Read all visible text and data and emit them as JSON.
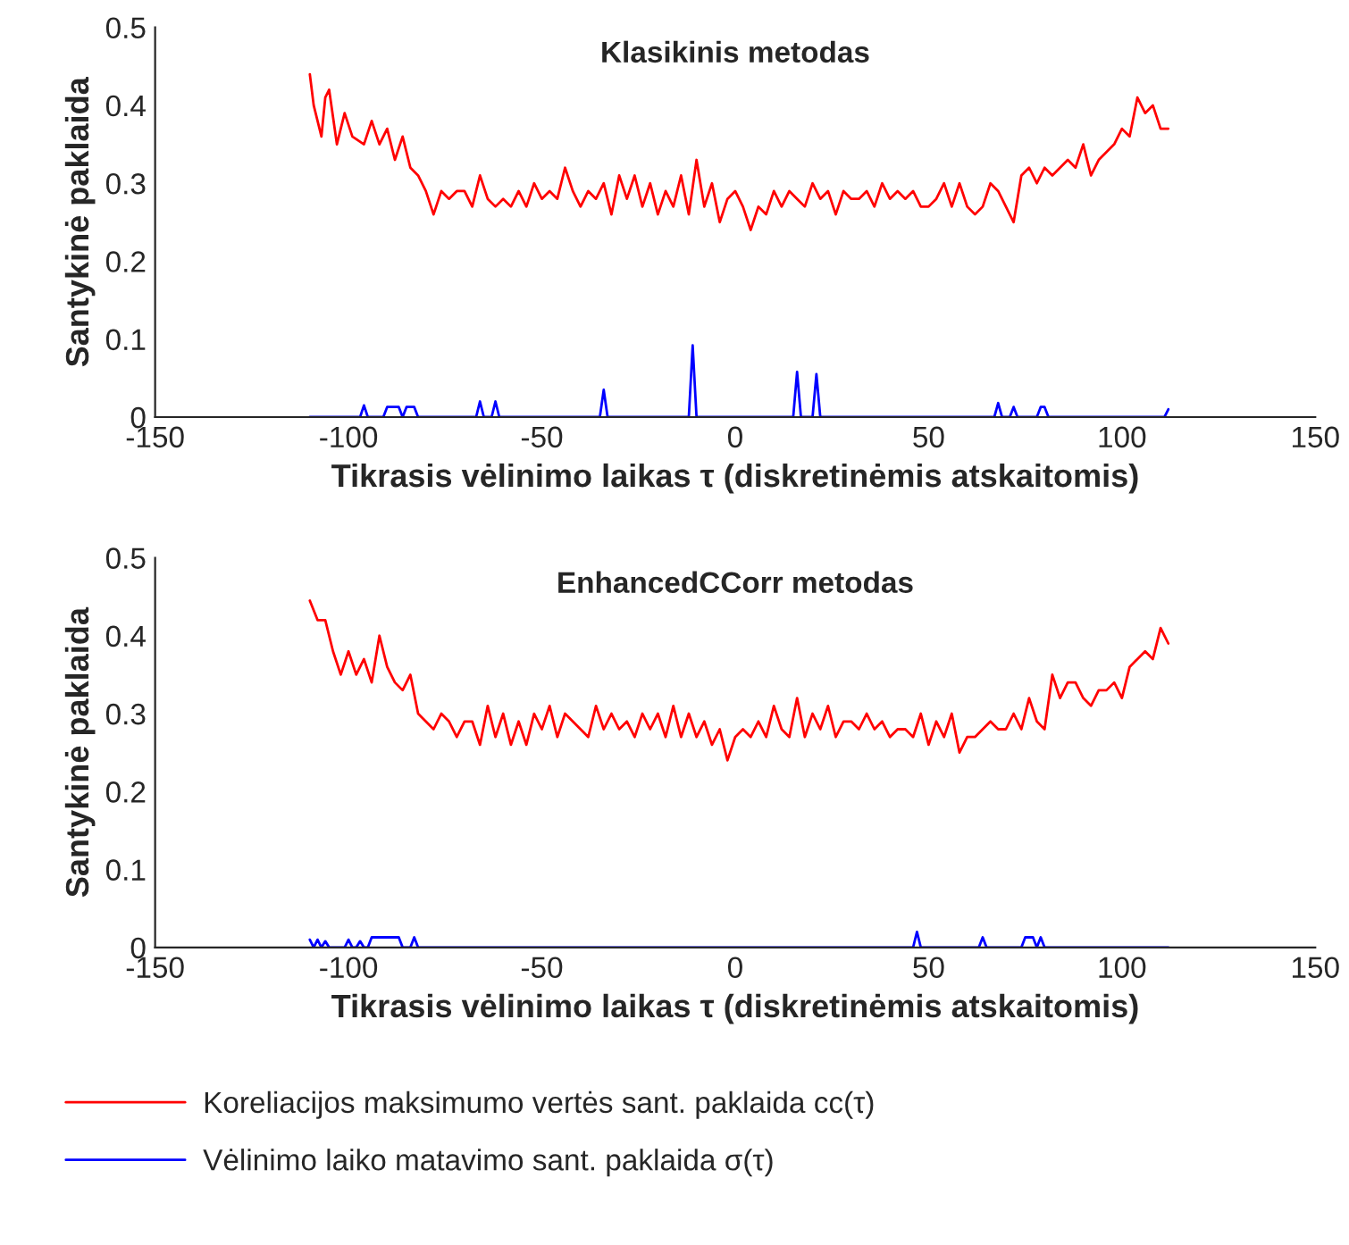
{
  "chart_data": [
    {
      "type": "line",
      "title": "Klasikinis metodas",
      "xlabel": "Tikrasis vėlinimo laikas τ (diskretinėmis atskaitomis)",
      "ylabel": "Santykinė paklaida",
      "xlim": [
        -150,
        150
      ],
      "xticks": [
        -150,
        -100,
        -50,
        0,
        50,
        100,
        150
      ],
      "ylim": [
        0,
        0.5
      ],
      "yticks": [
        0,
        0.1,
        0.2,
        0.3,
        0.4,
        0.5
      ],
      "grid": false,
      "series": [
        {
          "color": "#ff0000",
          "x": [
            -110,
            -109,
            -107,
            -106,
            -105,
            -103,
            -101,
            -99,
            -96,
            -94,
            -92,
            -90,
            -88,
            -86,
            -84,
            -82,
            -80,
            -78,
            -76,
            -74,
            -72,
            -70,
            -68,
            -66,
            -64,
            -62,
            -60,
            -58,
            -56,
            -54,
            -52,
            -50,
            -48,
            -46,
            -44,
            -42,
            -40,
            -38,
            -36,
            -34,
            -32,
            -30,
            -28,
            -26,
            -24,
            -22,
            -20,
            -18,
            -16,
            -14,
            -12,
            -10,
            -8,
            -6,
            -4,
            -2,
            0,
            2,
            4,
            6,
            8,
            10,
            12,
            14,
            16,
            18,
            20,
            22,
            24,
            26,
            28,
            30,
            32,
            34,
            36,
            38,
            40,
            42,
            44,
            46,
            48,
            50,
            52,
            54,
            56,
            58,
            60,
            62,
            64,
            66,
            68,
            70,
            72,
            74,
            76,
            78,
            80,
            82,
            84,
            86,
            88,
            90,
            92,
            94,
            96,
            98,
            100,
            102,
            104,
            106,
            108,
            110,
            112
          ],
          "values": [
            0.44,
            0.4,
            0.36,
            0.41,
            0.42,
            0.35,
            0.39,
            0.36,
            0.35,
            0.38,
            0.35,
            0.37,
            0.33,
            0.36,
            0.32,
            0.31,
            0.29,
            0.26,
            0.29,
            0.28,
            0.29,
            0.29,
            0.27,
            0.31,
            0.28,
            0.27,
            0.28,
            0.27,
            0.29,
            0.27,
            0.3,
            0.28,
            0.29,
            0.28,
            0.32,
            0.29,
            0.27,
            0.29,
            0.28,
            0.3,
            0.26,
            0.31,
            0.28,
            0.31,
            0.27,
            0.3,
            0.26,
            0.29,
            0.27,
            0.31,
            0.26,
            0.33,
            0.27,
            0.3,
            0.25,
            0.28,
            0.29,
            0.27,
            0.24,
            0.27,
            0.26,
            0.29,
            0.27,
            0.29,
            0.28,
            0.27,
            0.3,
            0.28,
            0.29,
            0.26,
            0.29,
            0.28,
            0.28,
            0.29,
            0.27,
            0.3,
            0.28,
            0.29,
            0.28,
            0.29,
            0.27,
            0.27,
            0.28,
            0.3,
            0.27,
            0.3,
            0.27,
            0.26,
            0.27,
            0.3,
            0.29,
            0.27,
            0.25,
            0.31,
            0.32,
            0.3,
            0.32,
            0.31,
            0.32,
            0.33,
            0.32,
            0.35,
            0.31,
            0.33,
            0.34,
            0.35,
            0.37,
            0.36,
            0.41,
            0.39,
            0.4,
            0.37,
            0.37
          ]
        },
        {
          "color": "#0000ff",
          "x": [
            -110,
            -97,
            -96,
            -95,
            -91,
            -90,
            -87,
            -86,
            -85,
            -83,
            -82,
            -67,
            -66,
            -65,
            -63,
            -62,
            -61,
            -35,
            -34,
            -33,
            -12,
            -11,
            -10,
            15,
            16,
            17,
            20,
            21,
            22,
            67,
            68,
            69,
            71,
            72,
            73,
            78,
            79,
            80,
            81,
            111,
            112
          ],
          "values": [
            0,
            0,
            0.015,
            0,
            0,
            0.013,
            0.013,
            0,
            0.013,
            0.013,
            0,
            0,
            0.02,
            0,
            0,
            0.02,
            0,
            0,
            0.035,
            0,
            0,
            0.092,
            0,
            0,
            0.058,
            0,
            0,
            0.055,
            0,
            0,
            0.018,
            0,
            0,
            0.013,
            0,
            0,
            0.013,
            0.013,
            0,
            0,
            0.01
          ]
        }
      ]
    },
    {
      "type": "line",
      "title": "EnhancedCCorr metodas",
      "xlabel": "Tikrasis vėlinimo laikas τ (diskretinėmis atskaitomis)",
      "ylabel": "Santykinė paklaida",
      "xlim": [
        -150,
        150
      ],
      "xticks": [
        -150,
        -100,
        -50,
        0,
        50,
        100,
        150
      ],
      "ylim": [
        0,
        0.5
      ],
      "yticks": [
        0,
        0.1,
        0.2,
        0.3,
        0.4,
        0.5
      ],
      "grid": false,
      "legend": "bottom",
      "series": [
        {
          "name": "Koreliacijos maksimumo vertės sant. paklaida cc(τ)",
          "color": "#ff0000",
          "x": [
            -110,
            -108,
            -106,
            -104,
            -102,
            -100,
            -98,
            -96,
            -94,
            -92,
            -90,
            -88,
            -86,
            -84,
            -82,
            -80,
            -78,
            -76,
            -74,
            -72,
            -70,
            -68,
            -66,
            -64,
            -62,
            -60,
            -58,
            -56,
            -54,
            -52,
            -50,
            -48,
            -46,
            -44,
            -42,
            -40,
            -38,
            -36,
            -34,
            -32,
            -30,
            -28,
            -26,
            -24,
            -22,
            -20,
            -18,
            -16,
            -14,
            -12,
            -10,
            -8,
            -6,
            -4,
            -2,
            0,
            2,
            4,
            6,
            8,
            10,
            12,
            14,
            16,
            18,
            20,
            22,
            24,
            26,
            28,
            30,
            32,
            34,
            36,
            38,
            40,
            42,
            44,
            46,
            48,
            50,
            52,
            54,
            56,
            58,
            60,
            62,
            64,
            66,
            68,
            70,
            72,
            74,
            76,
            78,
            80,
            82,
            84,
            86,
            88,
            90,
            92,
            94,
            96,
            98,
            100,
            102,
            104,
            106,
            108,
            110,
            112
          ],
          "values": [
            0.445,
            0.42,
            0.42,
            0.38,
            0.35,
            0.38,
            0.35,
            0.37,
            0.34,
            0.4,
            0.36,
            0.34,
            0.33,
            0.35,
            0.3,
            0.29,
            0.28,
            0.3,
            0.29,
            0.27,
            0.29,
            0.29,
            0.26,
            0.31,
            0.27,
            0.3,
            0.26,
            0.29,
            0.26,
            0.3,
            0.28,
            0.31,
            0.27,
            0.3,
            0.29,
            0.28,
            0.27,
            0.31,
            0.28,
            0.3,
            0.28,
            0.29,
            0.27,
            0.3,
            0.28,
            0.3,
            0.27,
            0.31,
            0.27,
            0.3,
            0.27,
            0.29,
            0.26,
            0.28,
            0.24,
            0.27,
            0.28,
            0.27,
            0.29,
            0.27,
            0.31,
            0.28,
            0.27,
            0.32,
            0.27,
            0.3,
            0.28,
            0.31,
            0.27,
            0.29,
            0.29,
            0.28,
            0.3,
            0.28,
            0.29,
            0.27,
            0.28,
            0.28,
            0.27,
            0.3,
            0.26,
            0.29,
            0.27,
            0.3,
            0.25,
            0.27,
            0.27,
            0.28,
            0.29,
            0.28,
            0.28,
            0.3,
            0.28,
            0.32,
            0.29,
            0.28,
            0.35,
            0.32,
            0.34,
            0.34,
            0.32,
            0.31,
            0.33,
            0.33,
            0.34,
            0.32,
            0.36,
            0.37,
            0.38,
            0.37,
            0.41,
            0.39
          ]
        },
        {
          "name": "Vėlinimo laiko matavimo sant. paklaida σ(τ)",
          "color": "#0000ff",
          "x": [
            -110,
            -109,
            -108,
            -107,
            -106,
            -105,
            -101,
            -100,
            -99,
            -98,
            -97,
            -96,
            -95,
            -94,
            -87,
            -86,
            -84,
            -83,
            -82,
            46,
            47,
            48,
            63,
            64,
            65,
            74,
            75,
            77,
            78,
            79,
            80,
            112
          ],
          "values": [
            0.01,
            0,
            0.01,
            0,
            0.008,
            0,
            0,
            0.01,
            0,
            0,
            0.008,
            0,
            0,
            0.013,
            0.013,
            0,
            0,
            0.013,
            0,
            0,
            0.02,
            0,
            0,
            0.013,
            0,
            0,
            0.013,
            0.013,
            0,
            0.013,
            0,
            0
          ]
        }
      ]
    }
  ]
}
